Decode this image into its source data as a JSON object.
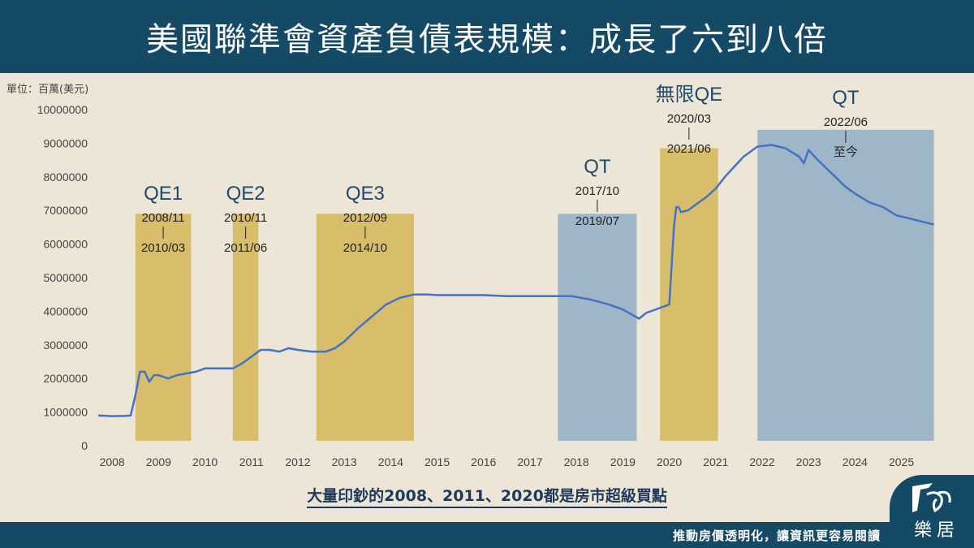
{
  "header": {
    "title": "美國聯準會資產負債表規模：成長了六到八倍"
  },
  "unit_label": "單位：百萬(美元)",
  "subtitle": "大量印鈔的2008、2011、2020都是房市超級買點",
  "footer": {
    "slogan": "推動房價透明化，讓資訊更容易閱讀",
    "logo_text": "樂居"
  },
  "colors": {
    "header_bg": "#154a66",
    "page_bg": "#ede6d7",
    "qe_band": "#d8bd6a",
    "qt_band": "#9fb6c8",
    "line": "#4472c4"
  },
  "chart_data": {
    "type": "line",
    "title": "美國聯準會資產負債表規模：成長了六到八倍",
    "ylabel": "單位：百萬(美元)",
    "ylim": [
      0,
      10000000
    ],
    "yticks": [
      0,
      1000000,
      2000000,
      3000000,
      4000000,
      5000000,
      6000000,
      7000000,
      8000000,
      9000000,
      10000000
    ],
    "xlim": [
      2007.7,
      2025.7
    ],
    "xticks": [
      "2008",
      "2009",
      "2010",
      "2011",
      "2012",
      "2013",
      "2014",
      "2015",
      "2016",
      "2017",
      "2018",
      "2019",
      "2020",
      "2021",
      "2022",
      "2023",
      "2024",
      "2025"
    ],
    "periods": [
      {
        "label": "QE1",
        "type": "QE",
        "start": 2008.5,
        "end": 2009.7,
        "start_label": "2008/11",
        "end_label": "2010/03"
      },
      {
        "label": "QE2",
        "type": "QE",
        "start": 2010.6,
        "end": 2011.15,
        "start_label": "2010/11",
        "end_label": "2011/06"
      },
      {
        "label": "QE3",
        "type": "QE",
        "start": 2012.4,
        "end": 2014.5,
        "start_label": "2012/09",
        "end_label": "2014/10"
      },
      {
        "label": "QT",
        "type": "QT",
        "start": 2017.6,
        "end": 2019.3,
        "start_label": "2017/10",
        "end_label": "2019/07"
      },
      {
        "label": "無限QE",
        "type": "QE",
        "start": 2019.8,
        "end": 2021.05,
        "start_label": "2020/03",
        "end_label": "2021/06"
      },
      {
        "label": "QT",
        "type": "QT",
        "start": 2021.9,
        "end": 2025.7,
        "start_label": "2022/06",
        "end_label": "至今"
      }
    ],
    "series": [
      {
        "x": [
          2007.7,
          2008.0,
          2008.3,
          2008.4,
          2008.5,
          2008.6,
          2008.7,
          2008.8,
          2008.9,
          2009.0,
          2009.2,
          2009.4,
          2009.6,
          2009.8,
          2010.0,
          2010.2,
          2010.4,
          2010.6,
          2010.8,
          2011.0,
          2011.2,
          2011.4,
          2011.6,
          2011.8,
          2012.0,
          2012.3,
          2012.6,
          2012.8,
          2013.0,
          2013.3,
          2013.6,
          2013.9,
          2014.2,
          2014.5,
          2014.8,
          2015.0,
          2015.5,
          2016.0,
          2016.5,
          2017.0,
          2017.5,
          2017.9,
          2018.3,
          2018.7,
          2019.0,
          2019.35,
          2019.5,
          2019.9,
          2020.0,
          2020.1,
          2020.15,
          2020.2,
          2020.25,
          2020.4,
          2020.6,
          2020.8,
          2021.0,
          2021.2,
          2021.4,
          2021.6,
          2021.9,
          2022.2,
          2022.5,
          2022.8,
          2022.9,
          2023.0,
          2023.2,
          2023.5,
          2023.8,
          2024.0,
          2024.3,
          2024.6,
          2024.9,
          2025.2,
          2025.5,
          2025.7
        ],
        "y": [
          900000,
          880000,
          890000,
          900000,
          1500000,
          2200000,
          2200000,
          1900000,
          2100000,
          2100000,
          2000000,
          2100000,
          2150000,
          2200000,
          2300000,
          2300000,
          2300000,
          2300000,
          2450000,
          2650000,
          2850000,
          2850000,
          2800000,
          2900000,
          2850000,
          2800000,
          2800000,
          2900000,
          3100000,
          3500000,
          3850000,
          4200000,
          4400000,
          4500000,
          4500000,
          4480000,
          4480000,
          4480000,
          4450000,
          4450000,
          4450000,
          4450000,
          4350000,
          4200000,
          4050000,
          3780000,
          3950000,
          4150000,
          4200000,
          6500000,
          7100000,
          7100000,
          6950000,
          7000000,
          7200000,
          7400000,
          7650000,
          8000000,
          8300000,
          8600000,
          8900000,
          8950000,
          8850000,
          8600000,
          8400000,
          8800000,
          8500000,
          8100000,
          7700000,
          7500000,
          7250000,
          7100000,
          6850000,
          6750000,
          6650000,
          6580000
        ]
      }
    ]
  }
}
